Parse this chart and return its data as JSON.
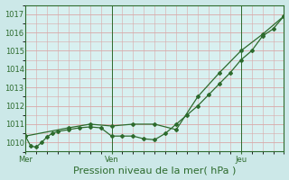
{
  "xlabel": "Pression niveau de la mer( hPa )",
  "background_color": "#cce8e8",
  "plot_bg_color": "#d8f0f0",
  "grid_color_h": "#d8a8a8",
  "grid_color_v": "#d8a8a8",
  "line_color": "#2d6b2d",
  "ylim": [
    1009.5,
    1017.5
  ],
  "xlim": [
    0,
    48
  ],
  "yticks": [
    1010,
    1011,
    1012,
    1013,
    1014,
    1015,
    1016,
    1017
  ],
  "xtick_positions": [
    0,
    16,
    40
  ],
  "xtick_labels": [
    "Mer",
    "Ven",
    "Jeu"
  ],
  "vline_positions": [
    0,
    16,
    40
  ],
  "line1_x": [
    0,
    1,
    2,
    3,
    4,
    5,
    6,
    8,
    10,
    12,
    14,
    16,
    18,
    20,
    22,
    24,
    26,
    28,
    30,
    32,
    34,
    36,
    38,
    40,
    42,
    44,
    46,
    48
  ],
  "line1_y": [
    1010.35,
    1009.8,
    1009.75,
    1010.0,
    1010.3,
    1010.5,
    1010.6,
    1010.7,
    1010.8,
    1010.85,
    1010.8,
    1010.35,
    1010.35,
    1010.35,
    1010.2,
    1010.15,
    1010.5,
    1011.0,
    1011.5,
    1012.0,
    1012.6,
    1013.2,
    1013.8,
    1014.5,
    1015.0,
    1015.8,
    1016.2,
    1016.9
  ],
  "line2_x": [
    0,
    8,
    12,
    16,
    20,
    24,
    28,
    32,
    36,
    40,
    44,
    48
  ],
  "line2_y": [
    1010.35,
    1010.8,
    1011.0,
    1010.9,
    1011.0,
    1011.0,
    1010.7,
    1012.5,
    1013.8,
    1015.0,
    1015.9,
    1016.9
  ],
  "ylabel_fontsize": 6,
  "xlabel_fontsize": 8,
  "tick_fontsize": 6
}
